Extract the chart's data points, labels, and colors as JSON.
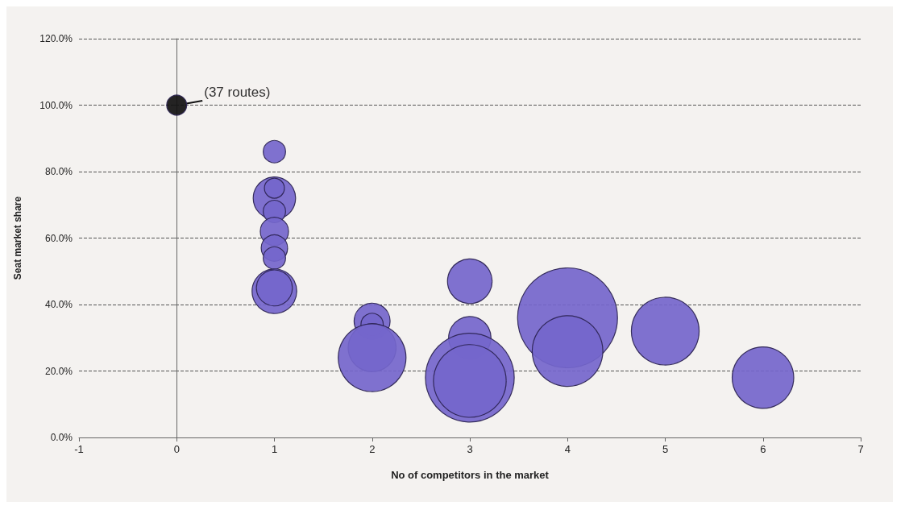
{
  "chart_data": {
    "type": "bubble",
    "xlabel": "No of competitors in the market",
    "ylabel": "Seat market share",
    "x": [
      0,
      1,
      1,
      1,
      1,
      1,
      1,
      1,
      1,
      1,
      2,
      2,
      2,
      2,
      3,
      3,
      3,
      3,
      4,
      4,
      5,
      6
    ],
    "values": [
      100,
      86,
      72,
      75,
      68,
      62,
      57,
      54,
      44,
      45,
      35,
      34,
      27,
      24,
      47,
      30,
      18,
      17,
      36,
      26,
      32,
      18
    ],
    "sizes": [
      0.04,
      0.05,
      0.18,
      0.04,
      0.05,
      0.08,
      0.07,
      0.05,
      0.2,
      0.13,
      0.13,
      0.05,
      0.23,
      0.46,
      0.2,
      0.18,
      0.79,
      0.53,
      1,
      0.5,
      0.46,
      0.38
    ],
    "colors": [
      "#111111",
      "#7466cc",
      "#7466cc",
      "#7466cc",
      "#7466cc",
      "#7466cc",
      "#7466cc",
      "#7466cc",
      "#7466cc",
      "#7466cc",
      "#7466cc",
      "#7466cc",
      "#7466cc",
      "#7466cc",
      "#7466cc",
      "#7466cc",
      "#7466cc",
      "#7466cc",
      "#7466cc",
      "#7466cc",
      "#7466cc",
      "#7466cc"
    ],
    "xlim": [
      -1,
      7
    ],
    "xticks": [
      -1,
      0,
      1,
      2,
      3,
      4,
      5,
      6,
      7
    ],
    "ylim": [
      0,
      120
    ],
    "yticks": [
      {
        "value": 0,
        "label": "0.0%"
      },
      {
        "value": 20,
        "label": "20.0%"
      },
      {
        "value": 40,
        "label": "40.0%"
      },
      {
        "value": 60,
        "label": "60.0%"
      },
      {
        "value": 80,
        "label": "80.0%"
      },
      {
        "value": 100,
        "label": "100.0%"
      },
      {
        "value": 120,
        "label": "120.0%"
      }
    ],
    "grid": "y",
    "marker": "circle",
    "annotations": [
      {
        "text": "(37 routes)",
        "x": 0,
        "y": 100
      }
    ]
  }
}
